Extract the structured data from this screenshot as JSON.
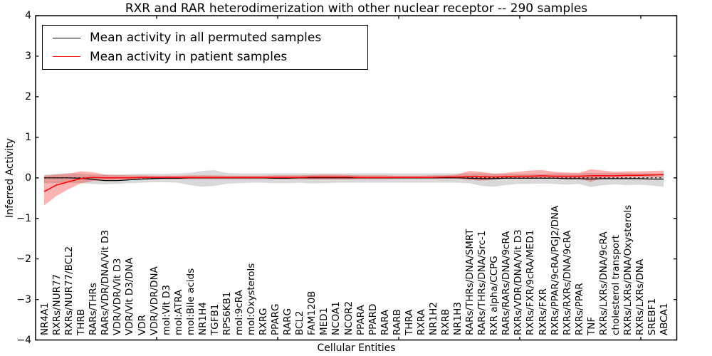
{
  "title": "RXR and RAR heterodimerization with other nuclear receptor -- 290 samples",
  "legend": [
    {
      "label": "Mean activity in all permuted samples",
      "color": "#000000"
    },
    {
      "label": "Mean activity in patient samples",
      "color": "#ff0000"
    }
  ],
  "colors": {
    "permuted_line": "#000000",
    "patient_line": "#ff0000",
    "permuted_band": "rgba(0,0,0,0.15)",
    "patient_band": "rgba(255,0,0,0.30)",
    "zero_line": "#000000",
    "frame": "#000000",
    "background": "#ffffff"
  },
  "chart_data": {
    "type": "line",
    "title": "RXR and RAR heterodimerization with other nuclear receptor -- 290 samples",
    "xlabel": "Cellular Entities",
    "ylabel": "Inferred Activity",
    "ylim": [
      -4,
      4
    ],
    "yticks": [
      4,
      3,
      2,
      1,
      0,
      -1,
      -2,
      -3,
      -4
    ],
    "ytick_labels": [
      "4",
      "3",
      "2",
      "1",
      "0",
      "−1",
      "−2",
      "−3",
      "−4"
    ],
    "grid": false,
    "legend_position": "upper left",
    "zero_reference_line": {
      "y": 0,
      "style": "dotted",
      "color": "#000000"
    },
    "categories": [
      "NR4A1",
      "RXRs/NUR77",
      "RXRs/NUR77/BCL2",
      "THRB",
      "RARs/THRs",
      "RARs/VDR/DNA/Vit D3",
      "VDR/VDR/Vit D3",
      "VDR/Vit D3/DNA",
      "VDR",
      "VDR/VDR/DNA",
      "mol:Vit D3",
      "mol:ATRA",
      "mol:Bile acids",
      "NR1H4",
      "TGFB1",
      "RPS6KB1",
      "mol:9cRA",
      "mol:Oxysterols",
      "RXRG",
      "PPARG",
      "RARG",
      "BCL2",
      "FAM120B",
      "MED1",
      "NCOA1",
      "NCOR2",
      "PPARA",
      "PPARD",
      "RARA",
      "RARB",
      "THRA",
      "RXRA",
      "NR1H2",
      "RXRB",
      "NR1H3",
      "RARs/THRs/DNA/SMRT",
      "RARs/THRs/DNA/Src-1",
      "RXR alpha/CCPG",
      "RARs/RARs/DNA/9cRA",
      "RXRs/VDR/DNA/Vit D3",
      "RXRs/FXR/9cRA/MED1",
      "RXRs/FXR",
      "RXRs/PPAR/9cRA/PGJ2/DNA",
      "RXRs/RXRs/DNA/9cRA",
      "RXRs/PPAR",
      "TNF",
      "RXRs/LXRs/DNA/9cRA",
      "cholesterol transport",
      "RXRs/LXRs/DNA/Oxysterols",
      "RXRs/LXRs/DNA",
      "SREBF1",
      "ABCA1"
    ],
    "series": [
      {
        "name": "Mean activity in all permuted samples",
        "color": "#000000",
        "values": [
          0,
          0,
          0,
          -0.01,
          -0.04,
          -0.07,
          -0.07,
          -0.05,
          -0.03,
          -0.02,
          -0.01,
          -0.01,
          0,
          0,
          0,
          0,
          0,
          0,
          0,
          -0.01,
          -0.01,
          0,
          0,
          0,
          0,
          0,
          0,
          0,
          0,
          0,
          0,
          0,
          0,
          0,
          0,
          -0.01,
          -0.02,
          -0.02,
          -0.01,
          -0.01,
          -0.01,
          -0.01,
          -0.01,
          -0.02,
          -0.02,
          -0.03,
          -0.02,
          -0.02,
          -0.02,
          -0.02,
          -0.03,
          -0.03
        ]
      },
      {
        "name": "Mean activity in patient samples",
        "color": "#ff0000",
        "values": [
          -0.34,
          -0.18,
          -0.1,
          -0.02,
          0.01,
          0,
          0,
          0,
          0.01,
          0.01,
          0.01,
          0.01,
          0.01,
          0.01,
          0.01,
          0.01,
          0.01,
          0.01,
          0.01,
          0.01,
          0.01,
          0.01,
          0.02,
          0.02,
          0.02,
          0.02,
          0.01,
          0.01,
          0.01,
          0.01,
          0.01,
          0.01,
          0.01,
          0.02,
          0.02,
          0.03,
          0.03,
          0.02,
          0.03,
          0.04,
          0.04,
          0.05,
          0.04,
          0.04,
          0.04,
          0.05,
          0.05,
          0.05,
          0.06,
          0.06,
          0.07,
          0.08
        ]
      }
    ],
    "bands": [
      {
        "name": "permuted samples range",
        "color": "rgba(0,0,0,0.15)",
        "lo": [
          -0.13,
          -0.13,
          -0.12,
          -0.13,
          -0.15,
          -0.16,
          -0.15,
          -0.13,
          -0.12,
          -0.11,
          -0.11,
          -0.12,
          -0.18,
          -0.22,
          -0.2,
          -0.15,
          -0.13,
          -0.12,
          -0.12,
          -0.13,
          -0.13,
          -0.12,
          -0.14,
          -0.13,
          -0.12,
          -0.12,
          -0.12,
          -0.12,
          -0.12,
          -0.12,
          -0.12,
          -0.12,
          -0.12,
          -0.12,
          -0.12,
          -0.13,
          -0.2,
          -0.22,
          -0.18,
          -0.15,
          -0.15,
          -0.14,
          -0.15,
          -0.17,
          -0.15,
          -0.23,
          -0.18,
          -0.16,
          -0.18,
          -0.17,
          -0.19,
          -0.22
        ],
        "hi": [
          0.08,
          0.1,
          0.12,
          0.1,
          0.08,
          0.08,
          0.08,
          0.09,
          0.1,
          0.1,
          0.1,
          0.11,
          0.12,
          0.17,
          0.19,
          0.12,
          0.11,
          0.11,
          0.11,
          0.11,
          0.11,
          0.11,
          0.11,
          0.11,
          0.11,
          0.11,
          0.11,
          0.11,
          0.11,
          0.11,
          0.11,
          0.11,
          0.11,
          0.11,
          0.11,
          0.11,
          0.11,
          0.11,
          0.1,
          0.1,
          0.1,
          0.1,
          0.11,
          0.11,
          0.11,
          0.12,
          0.12,
          0.12,
          0.12,
          0.11,
          0.11,
          0.1
        ]
      },
      {
        "name": "patient samples range",
        "color": "rgba(255,0,0,0.30)",
        "lo": [
          -0.68,
          -0.45,
          -0.28,
          -0.14,
          -0.08,
          -0.06,
          -0.05,
          -0.04,
          -0.04,
          -0.03,
          -0.03,
          -0.03,
          -0.03,
          -0.03,
          -0.03,
          -0.03,
          -0.03,
          -0.03,
          -0.03,
          -0.03,
          -0.03,
          -0.03,
          -0.04,
          -0.04,
          -0.04,
          -0.04,
          -0.03,
          -0.03,
          -0.03,
          -0.02,
          -0.02,
          -0.02,
          -0.02,
          -0.02,
          -0.02,
          -0.05,
          -0.07,
          -0.04,
          -0.02,
          -0.02,
          -0.02,
          -0.01,
          -0.01,
          -0.02,
          -0.01,
          -0.1,
          0.0,
          0.01,
          0.01,
          0.02,
          0.02,
          0.02
        ],
        "hi": [
          0.05,
          0.08,
          0.1,
          0.16,
          0.14,
          0.08,
          0.07,
          0.06,
          0.06,
          0.05,
          0.05,
          0.05,
          0.06,
          0.06,
          0.06,
          0.05,
          0.05,
          0.05,
          0.05,
          0.06,
          0.06,
          0.06,
          0.07,
          0.08,
          0.08,
          0.07,
          0.06,
          0.06,
          0.06,
          0.05,
          0.05,
          0.05,
          0.06,
          0.06,
          0.08,
          0.17,
          0.15,
          0.1,
          0.12,
          0.15,
          0.18,
          0.19,
          0.15,
          0.13,
          0.12,
          0.21,
          0.18,
          0.15,
          0.16,
          0.16,
          0.17,
          0.18
        ]
      }
    ]
  }
}
